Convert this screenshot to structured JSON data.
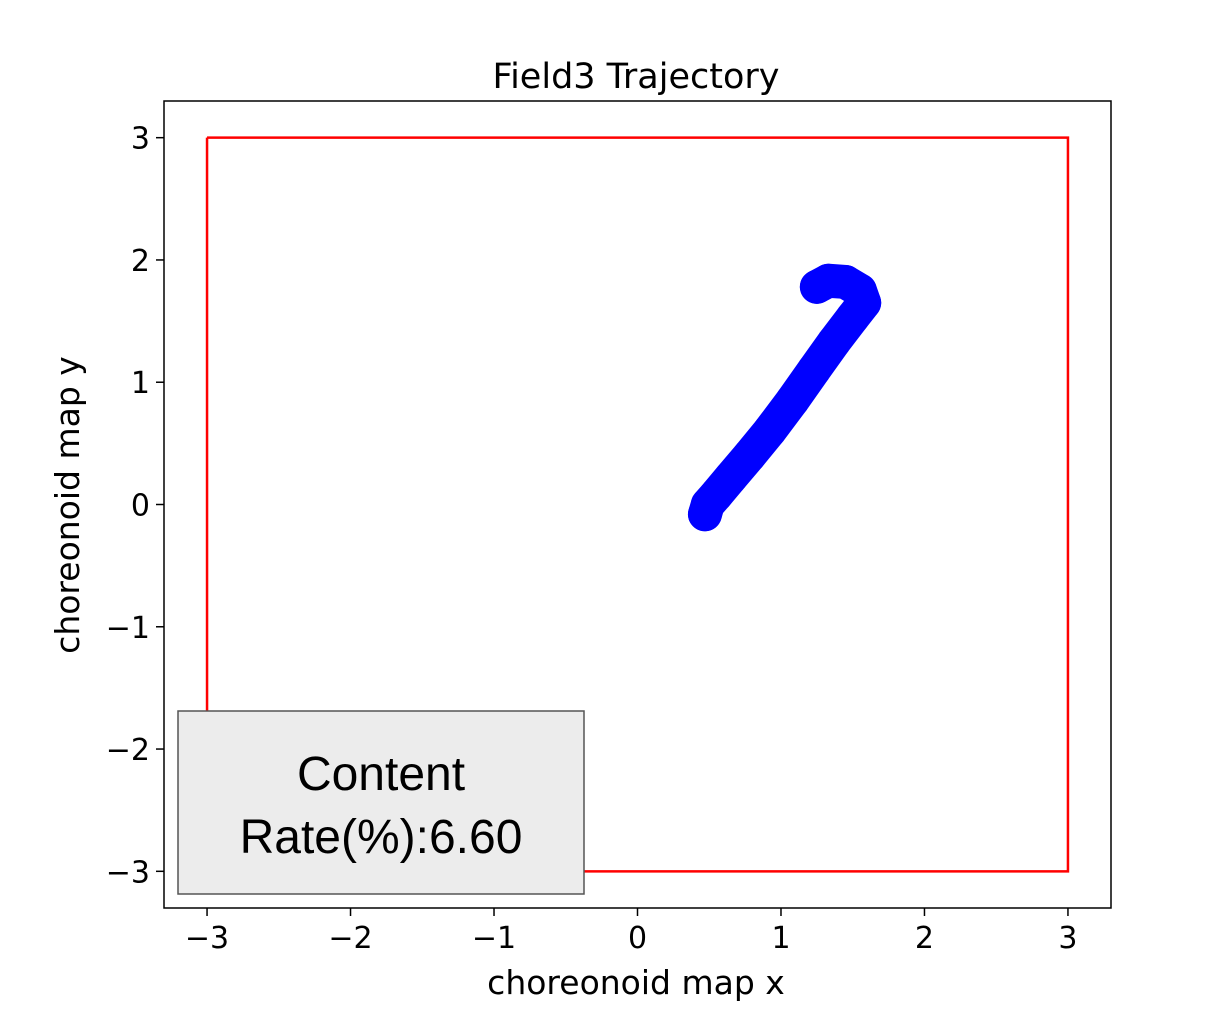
{
  "chart_data": {
    "type": "line",
    "title": "Field3 Trajectory",
    "xlabel": "choreonoid map x",
    "ylabel": "choreonoid map y",
    "xlim": [
      -3.3,
      3.3
    ],
    "ylim": [
      -3.3,
      3.3
    ],
    "xticks": [
      -3,
      -2,
      -1,
      0,
      1,
      2,
      3
    ],
    "yticks": [
      -3,
      -2,
      -1,
      0,
      1,
      2,
      3
    ],
    "xtick_labels": [
      "−3",
      "−2",
      "−1",
      "0",
      "1",
      "2",
      "3"
    ],
    "ytick_labels": [
      "−3",
      "−2",
      "−1",
      "0",
      "1",
      "2",
      "3"
    ],
    "grid": false,
    "series": [
      {
        "color": "#0000ff",
        "marker": "circle",
        "x": [
          0.47,
          0.49,
          0.55,
          0.65,
          0.78,
          0.92,
          1.08,
          1.23,
          1.37,
          1.5,
          1.58,
          1.55,
          1.45,
          1.33,
          1.25
        ],
        "y": [
          -0.08,
          0.0,
          0.08,
          0.22,
          0.4,
          0.6,
          0.85,
          1.1,
          1.33,
          1.53,
          1.65,
          1.75,
          1.82,
          1.83,
          1.78
        ]
      }
    ],
    "boundary": {
      "color": "#ff0000",
      "x": [
        -3,
        3,
        3,
        -3,
        -3
      ],
      "y": [
        3,
        3,
        -3,
        -3,
        3
      ]
    },
    "annotation": {
      "lines": [
        "Content",
        "Rate(%):6.60"
      ],
      "background": "#ececec",
      "placement": "lower-left"
    }
  }
}
